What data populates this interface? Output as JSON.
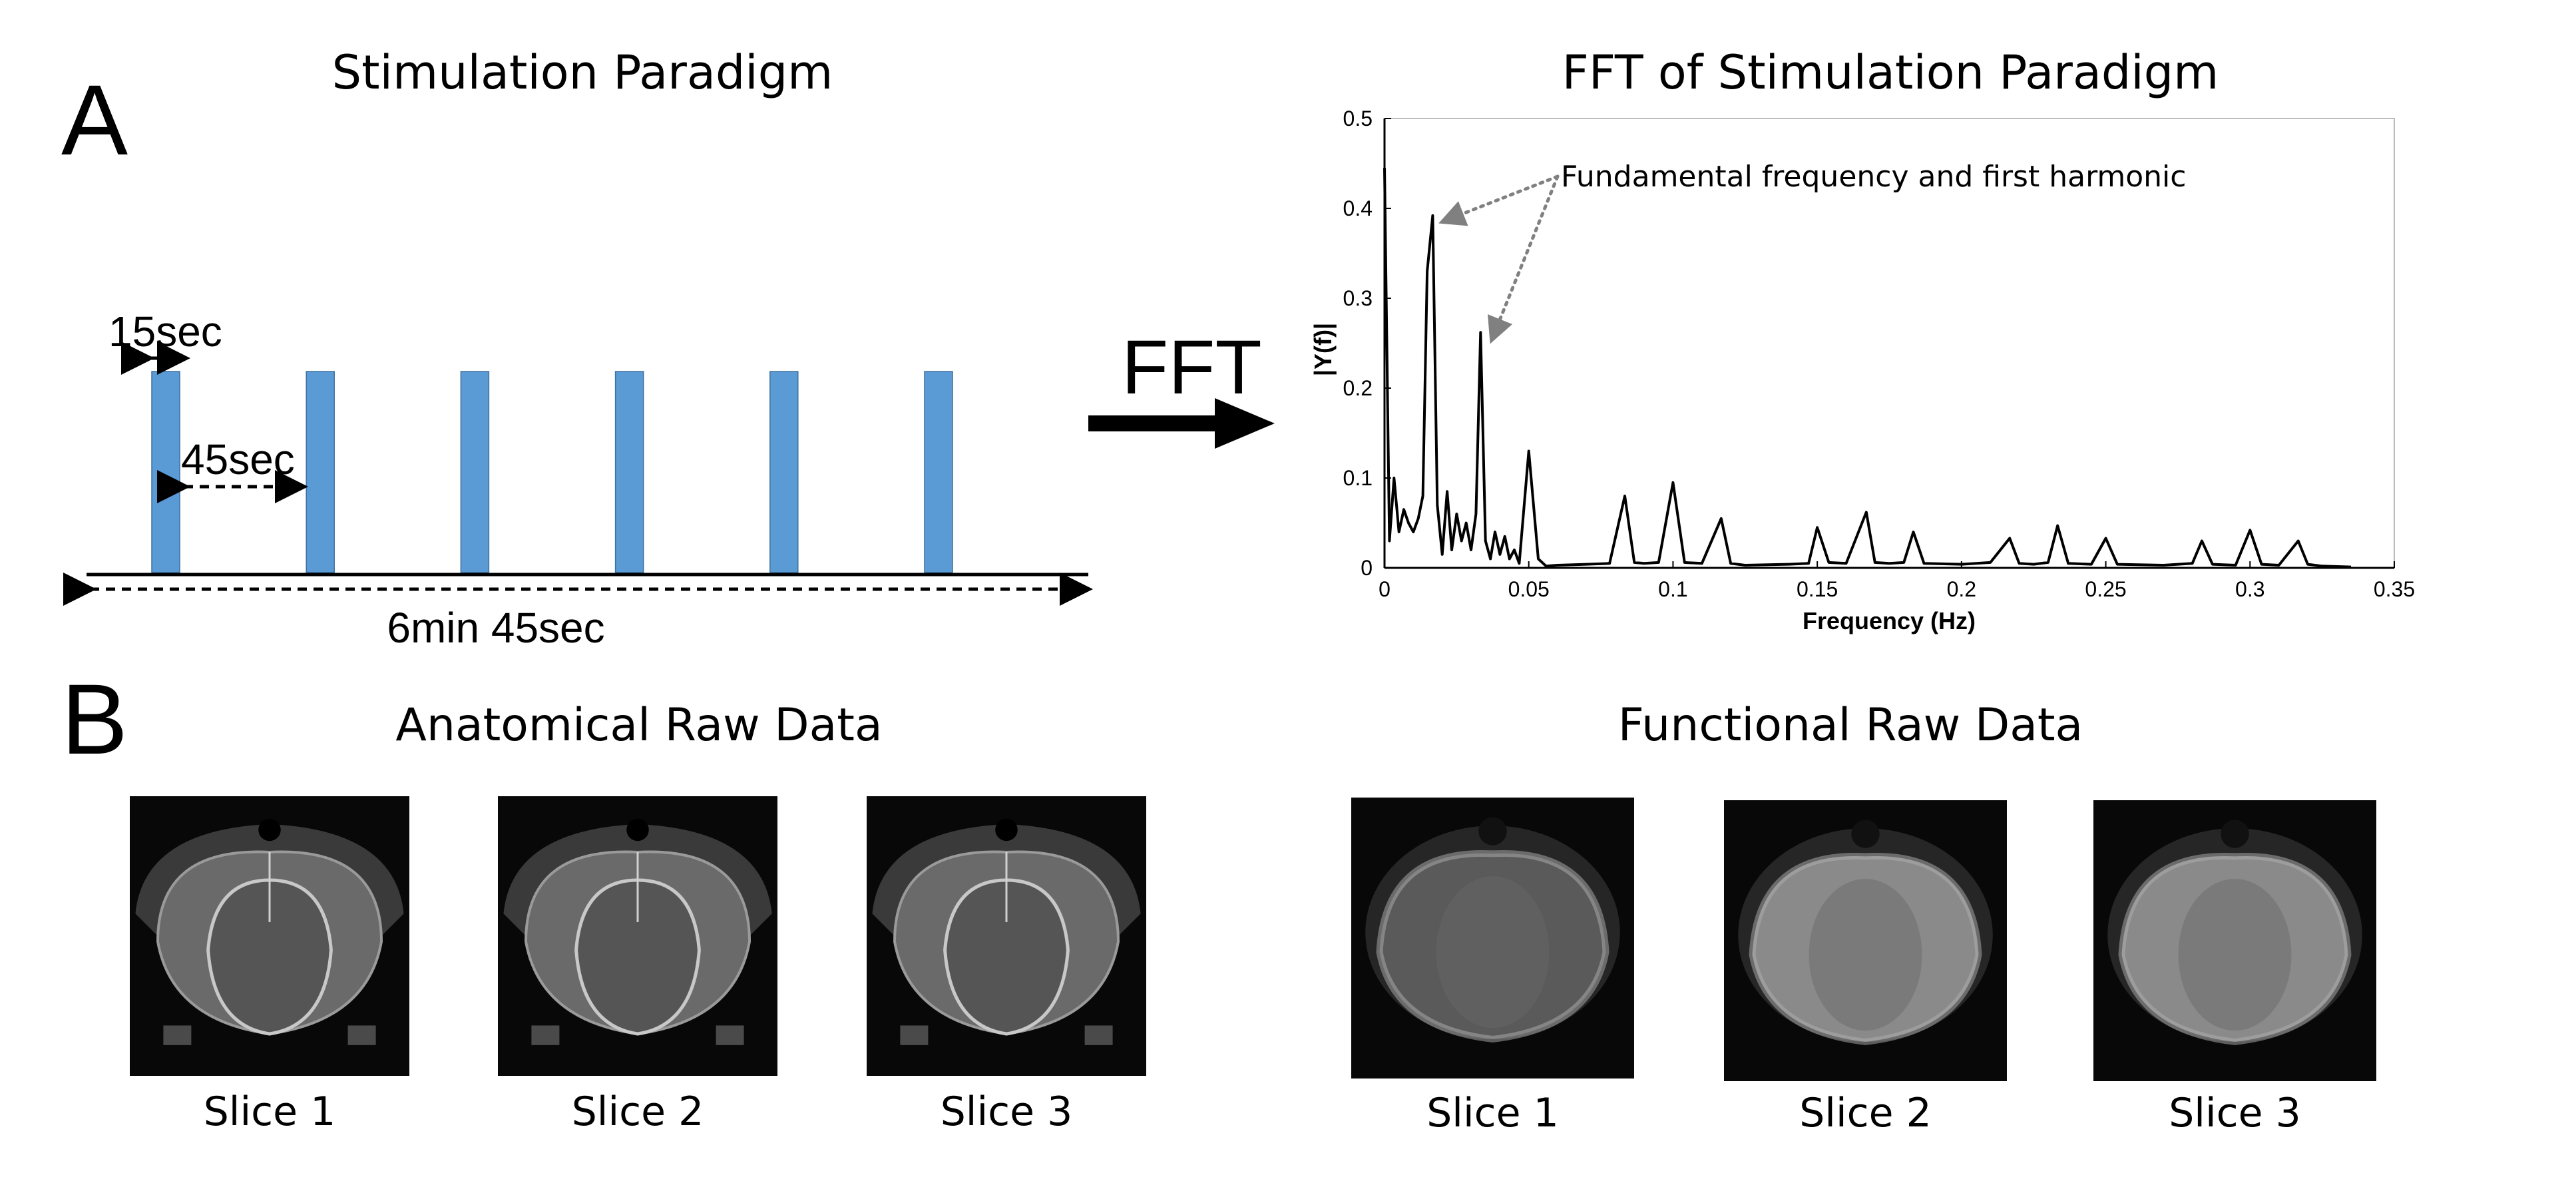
{
  "panel_a": {
    "label": "A",
    "paradigm": {
      "title": "Stimulation Paradigm",
      "on_label": "15sec",
      "off_label": "45sec",
      "total_label": "6min 45sec",
      "bar_color": "#5b9bd5",
      "blocks": 6,
      "on_seconds": 15,
      "period_seconds": 60,
      "total_seconds": 405
    },
    "arrow_label": "FFT",
    "fft": {
      "title": "FFT of Stimulation Paradigm",
      "annotation": "Fundamental frequency and first harmonic"
    }
  },
  "panel_b": {
    "label": "B",
    "anatomical": {
      "title": "Anatomical Raw Data",
      "slices": [
        "Slice 1",
        "Slice 2",
        "Slice 3"
      ]
    },
    "functional": {
      "title": "Functional Raw Data",
      "slices": [
        "Slice 1",
        "Slice 2",
        "Slice 3"
      ]
    }
  },
  "chart_data": {
    "type": "line",
    "title": "FFT of Stimulation Paradigm",
    "xlabel": "Frequency (Hz)",
    "ylabel": "|Y(f)|",
    "xlim": [
      0,
      0.35
    ],
    "ylim": [
      0,
      0.5
    ],
    "xticks": [
      "0",
      "0.05",
      "0.1",
      "0.15",
      "0.2",
      "0.25",
      "0.3",
      "0.35"
    ],
    "yticks": [
      "0",
      "0.1",
      "0.2",
      "0.3",
      "0.4",
      "0.5"
    ],
    "grid": false,
    "series": [
      {
        "name": "|Y(f)|",
        "x": [
          0,
          0.0017,
          0.0033,
          0.005,
          0.0067,
          0.0083,
          0.01,
          0.0117,
          0.0133,
          0.0148,
          0.0167,
          0.0183,
          0.02,
          0.0217,
          0.0233,
          0.025,
          0.0267,
          0.0283,
          0.03,
          0.0317,
          0.0333,
          0.035,
          0.0367,
          0.0383,
          0.04,
          0.0417,
          0.0433,
          0.045,
          0.0467,
          0.05,
          0.0533,
          0.056,
          0.06,
          0.07,
          0.078,
          0.0833,
          0.0866,
          0.09,
          0.095,
          0.1,
          0.104,
          0.11,
          0.1167,
          0.12,
          0.125,
          0.14,
          0.147,
          0.15,
          0.154,
          0.16,
          0.167,
          0.17,
          0.175,
          0.18,
          0.1833,
          0.187,
          0.2,
          0.21,
          0.2167,
          0.22,
          0.225,
          0.23,
          0.2333,
          0.237,
          0.245,
          0.25,
          0.254,
          0.27,
          0.28,
          0.2833,
          0.287,
          0.295,
          0.3,
          0.304,
          0.31,
          0.3167,
          0.32,
          0.325,
          0.335
        ],
        "y": [
          0.445,
          0.03,
          0.1,
          0.04,
          0.065,
          0.05,
          0.04,
          0.055,
          0.08,
          0.33,
          0.392,
          0.07,
          0.015,
          0.085,
          0.02,
          0.06,
          0.03,
          0.05,
          0.02,
          0.06,
          0.262,
          0.03,
          0.01,
          0.04,
          0.015,
          0.035,
          0.01,
          0.02,
          0.005,
          0.13,
          0.01,
          0.002,
          0.003,
          0.004,
          0.005,
          0.08,
          0.006,
          0.005,
          0.006,
          0.095,
          0.006,
          0.005,
          0.055,
          0.005,
          0.003,
          0.004,
          0.005,
          0.045,
          0.006,
          0.005,
          0.062,
          0.006,
          0.005,
          0.006,
          0.04,
          0.005,
          0.004,
          0.006,
          0.033,
          0.005,
          0.004,
          0.006,
          0.047,
          0.005,
          0.004,
          0.033,
          0.004,
          0.003,
          0.005,
          0.03,
          0.004,
          0.003,
          0.042,
          0.004,
          0.003,
          0.03,
          0.004,
          0.002,
          0.001
        ]
      }
    ],
    "annotations": [
      {
        "text": "Fundamental frequency and first harmonic",
        "points_to": [
          [
            0.0167,
            0.392
          ],
          [
            0.0333,
            0.262
          ]
        ]
      }
    ]
  }
}
